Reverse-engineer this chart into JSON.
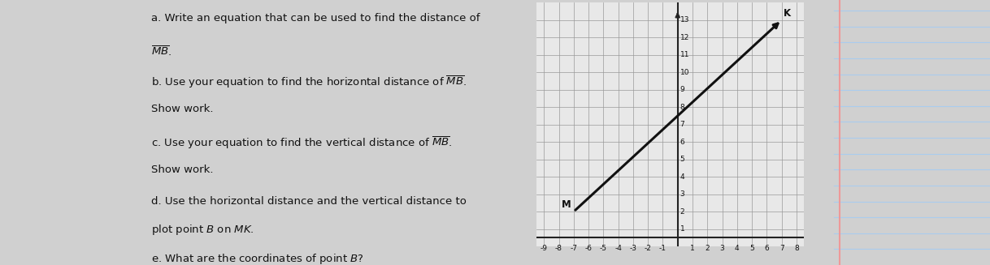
{
  "bg_color": "#d0d0d0",
  "text_bg_color": "#e8e6e0",
  "grid_bg_color": "#e8e8e8",
  "graph": {
    "xlim": [
      -9.5,
      8.5
    ],
    "ylim": [
      0,
      14
    ],
    "xmin": -9,
    "xmax": 8,
    "ymin": 1,
    "ymax": 13,
    "xticks": [
      -9,
      -8,
      -7,
      -6,
      -5,
      -4,
      -3,
      -2,
      -1,
      1,
      2,
      3,
      4,
      5,
      6,
      7,
      8
    ],
    "yticks": [
      1,
      2,
      3,
      4,
      5,
      6,
      7,
      8,
      9,
      10,
      11,
      12,
      13
    ],
    "M": [
      -7,
      2
    ],
    "K": [
      7,
      13
    ],
    "line_color": "#111111",
    "label_M": "M",
    "label_K": "K",
    "grid_color": "#999999",
    "axis_color": "#222222"
  },
  "text_color": "#111111",
  "fs": 9.5,
  "paper_line_color": "#aaccee",
  "paper_margin_color": "#ee9999",
  "paper_bg": "#f5f5e8"
}
